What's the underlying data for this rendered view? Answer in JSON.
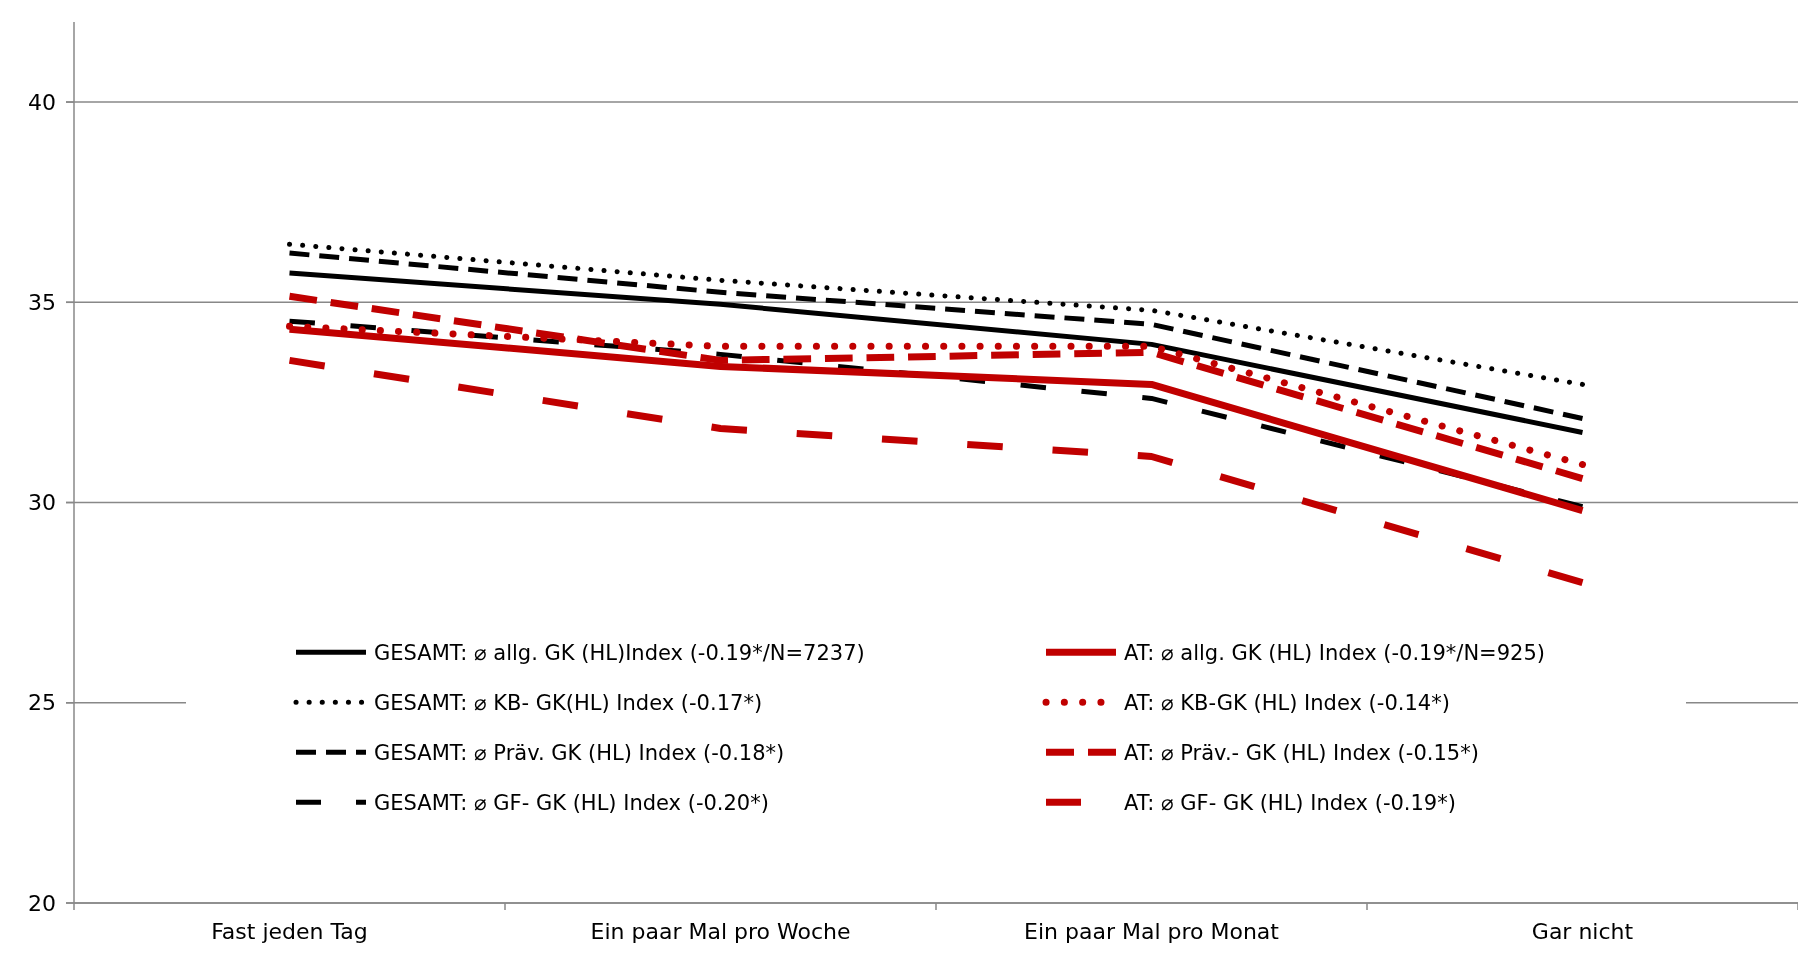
{
  "chart_data": {
    "type": "line",
    "categories": [
      "Fast jeden Tag",
      "Ein paar Mal pro Woche",
      "Ein paar Mal pro Monat",
      "Gar nicht"
    ],
    "series": [
      {
        "name": "GESAMT: ⌀ allg. GK (HL)Index (-0.19*/N=7237)",
        "color": "#000000",
        "line_style": "solid",
        "values": [
          35.73,
          34.95,
          33.95,
          31.75
        ]
      },
      {
        "name": "GESAMT: ⌀ KB- GK(HL) Index (-0.17*)",
        "color": "#000000",
        "line_style": "dotted",
        "values": [
          36.45,
          35.55,
          34.8,
          32.95
        ]
      },
      {
        "name": "GESAMT: ⌀ Präv. GK (HL) Index (-0.18*)",
        "color": "#000000",
        "line_style": "dashed",
        "values": [
          36.23,
          35.25,
          34.45,
          32.1
        ]
      },
      {
        "name": "GESAMT: ⌀ GF- GK (HL) Index (-0.20*)",
        "color": "#000000",
        "line_style": "dashed",
        "values": [
          34.53,
          33.7,
          32.6,
          29.9
        ]
      },
      {
        "name": "AT: ⌀ allg. GK (HL) Index (-0.19*/N=925)",
        "color": "#c00000",
        "line_style": "solid",
        "values": [
          34.33,
          33.4,
          32.95,
          29.8
        ]
      },
      {
        "name": "AT: ⌀ KB-GK (HL) Index (-0.14*)",
        "color": "#c00000",
        "line_style": "dotted",
        "values": [
          34.4,
          33.9,
          33.9,
          30.95
        ]
      },
      {
        "name": "AT: ⌀ Präv.- GK (HL) Index (-0.15*)",
        "color": "#c00000",
        "line_style": "dashed",
        "values": [
          35.15,
          33.55,
          33.75,
          30.6
        ]
      },
      {
        "name": "AT: ⌀ GF- GK (HL) Index (-0.19*)",
        "color": "#c00000",
        "line_style": "dashed",
        "values": [
          33.55,
          31.85,
          31.15,
          28.0
        ]
      }
    ],
    "ylim": [
      20,
      42
    ],
    "yticks": [
      20,
      25,
      30,
      35,
      40
    ],
    "grid": "y",
    "legend": "bottom"
  }
}
